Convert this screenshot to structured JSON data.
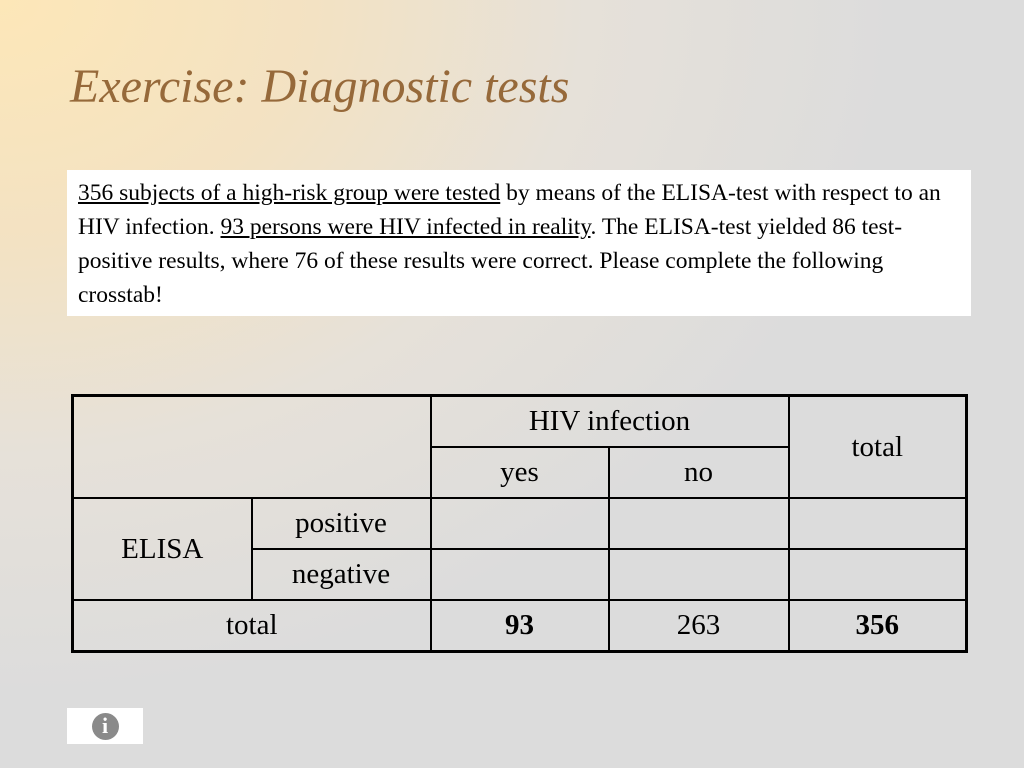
{
  "slide": {
    "title": "Exercise: Diagnostic tests"
  },
  "description": {
    "part1_underlined": "356 subjects of a high-risk group were tested",
    "part2": " by means of the ELISA-test with respect to an HIV infection. ",
    "part3_underlined": "93 persons were HIV infected in reality",
    "part4": ". The ELISA-test yielded 86 test-positive results, where 76 of these results were correct. Please complete the following crosstab!"
  },
  "crosstab": {
    "header_group": "HIV infection",
    "col_yes": "yes",
    "col_no": "no",
    "col_total": "total",
    "row_group": "ELISA",
    "row_positive": "positive",
    "row_negative": "negative",
    "row_total": "total",
    "positive_yes": "",
    "positive_no": "",
    "positive_total": "",
    "negative_yes": "",
    "negative_no": "",
    "negative_total": "",
    "total_yes": "93",
    "total_no": "263",
    "total_total": "356"
  },
  "info": {
    "icon": "info-icon",
    "glyph": "i"
  }
}
